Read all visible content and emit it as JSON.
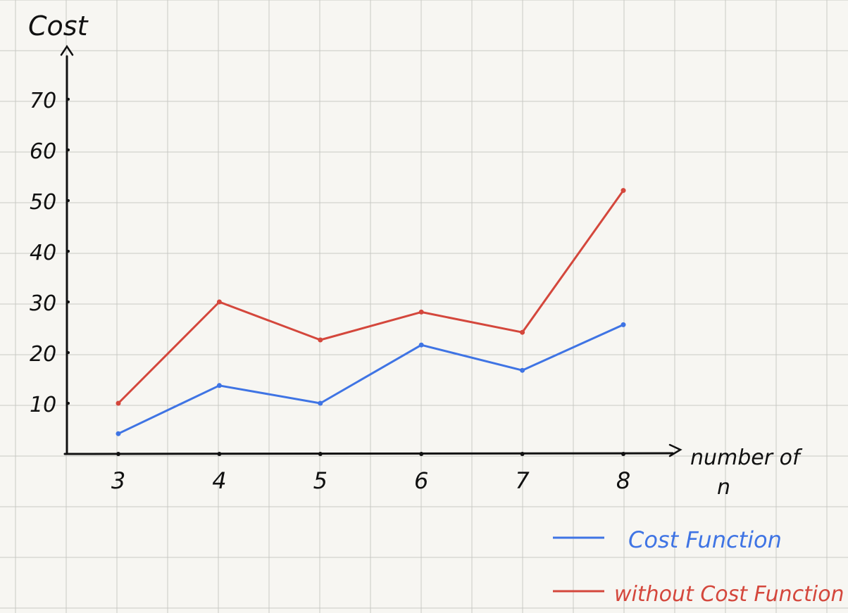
{
  "chart_data": {
    "type": "line",
    "ylabel": "Cost",
    "xlabel": "number of n",
    "xlabel_line1": "number of",
    "xlabel_line2": "n",
    "x": [
      3,
      4,
      5,
      6,
      7,
      8
    ],
    "x_tick_labels": [
      "3",
      "4",
      "5",
      "6",
      "7",
      "8"
    ],
    "y_tick_labels": [
      "10",
      "20",
      "30",
      "40",
      "50",
      "60",
      "70"
    ],
    "ylim": [
      0,
      75
    ],
    "grid": true,
    "legend_position": "bottom-right",
    "series": [
      {
        "name": "Cost Function",
        "color": "#3f74e4",
        "values": [
          4,
          13.5,
          10,
          21.5,
          16.5,
          25.5
        ]
      },
      {
        "name": "without Cost Function",
        "color": "#d4473c",
        "values": [
          10,
          30,
          22.5,
          28,
          24,
          52
        ]
      }
    ]
  }
}
